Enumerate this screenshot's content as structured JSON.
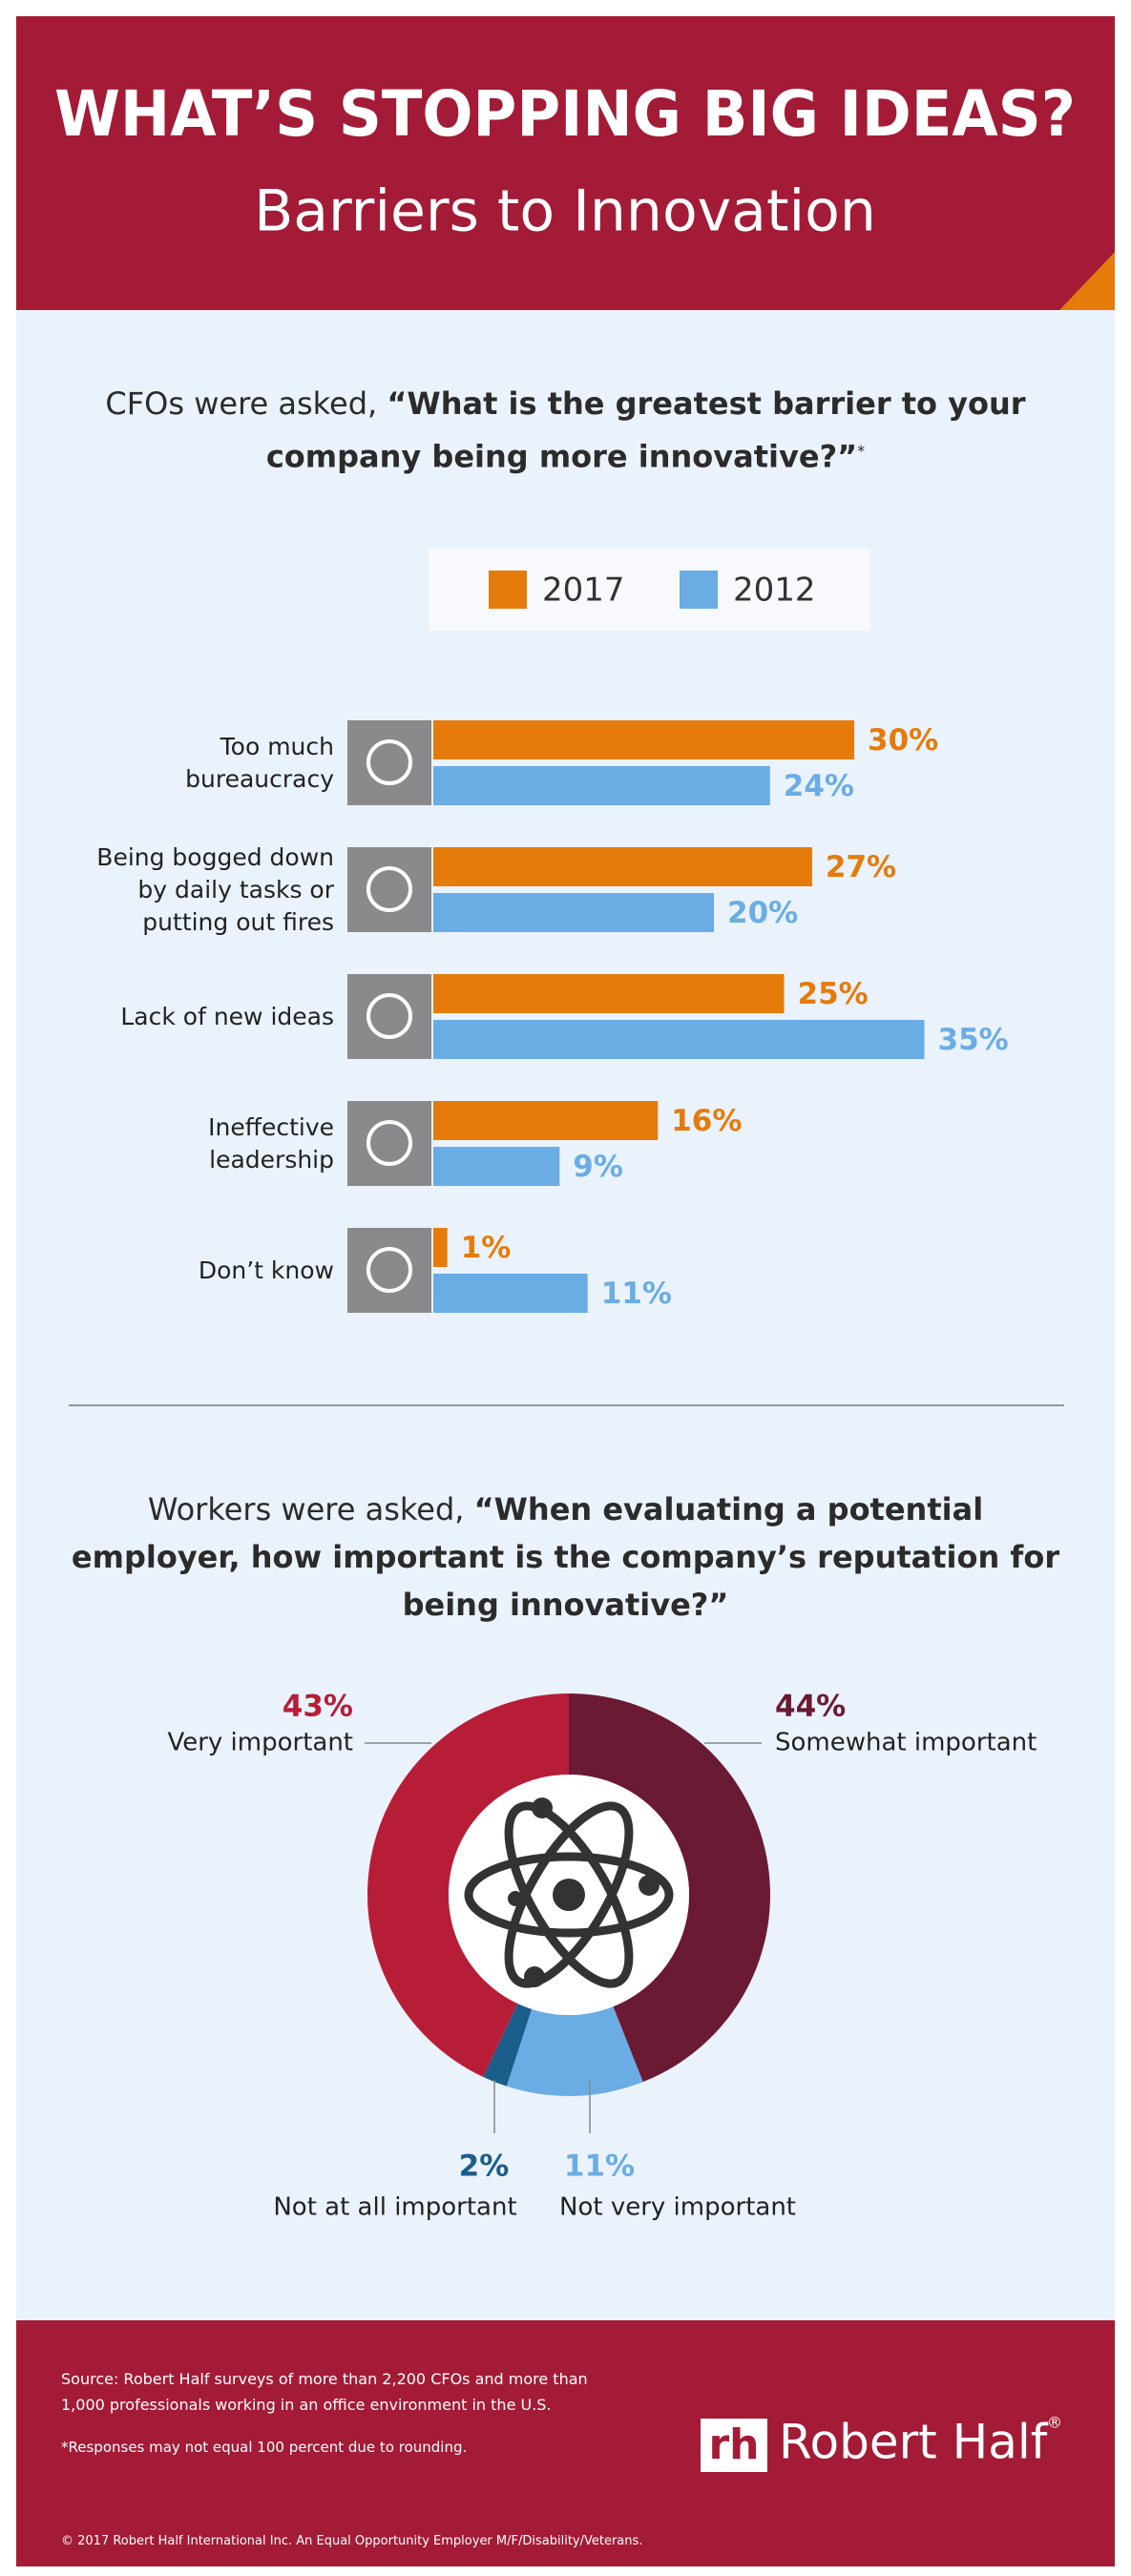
{
  "header": {
    "title": "WHAT’S STOPPING BIG IDEAS?",
    "subtitle": "Barriers to Innovation"
  },
  "chart_data": [
    {
      "type": "bar",
      "question_lead": "CFOs were asked,",
      "question": "“What is the greatest barrier to your company being more innovative?”",
      "question_note": "*",
      "categories": [
        "Too much bureaucracy",
        "Being bogged down by daily tasks or putting out fires",
        "Lack of new ideas",
        "Ineffective leadership",
        "Don’t know"
      ],
      "series": [
        {
          "name": "2017",
          "color": "#e57b0b",
          "values": [
            30,
            27,
            25,
            16,
            1
          ],
          "value_labels": [
            "30%",
            "27%",
            "25%",
            "16%",
            "1%"
          ]
        },
        {
          "name": "2012",
          "color": "#6aade4",
          "values": [
            24,
            20,
            35,
            9,
            11
          ],
          "value_labels": [
            "24%",
            "20%",
            "35%",
            "9%",
            "11%"
          ]
        }
      ]
    },
    {
      "type": "donut",
      "question_lead": "Workers were asked,",
      "question": "“When evaluating a potential employer, how important is the company’s reputation for being innovative?”",
      "categories": [
        "Somewhat important",
        "Not very important",
        "Not at all important",
        "Very important"
      ],
      "values": [
        44,
        11,
        2,
        43
      ],
      "value_labels": [
        "44%",
        "11%",
        "2%",
        "43%"
      ],
      "colors": [
        "#6b1a33",
        "#6aade4",
        "#1b5d8a",
        "#b81d37"
      ]
    }
  ],
  "footer": {
    "source": "Source: Robert Half surveys of more than 2,200 CFOs and more than 1,000 professionals working in an office environment in the U.S.",
    "note": "*Responses may not equal 100 percent due to rounding.",
    "copyright": "© 2017 Robert Half International Inc. An Equal Opportunity Employer M/F/Disability/Veterans.",
    "logo_mark": "rh",
    "logo_text": "Robert Half",
    "logo_reg": "®"
  }
}
